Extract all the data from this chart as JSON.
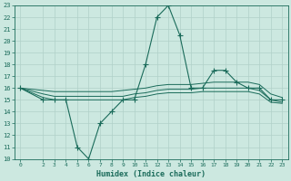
{
  "xlabel": "Humidex (Indice chaleur)",
  "bg_color": "#cce8e0",
  "line_color": "#1a6b5a",
  "grid_color": "#b0d0c8",
  "xlim": [
    -0.5,
    23.5
  ],
  "ylim": [
    10,
    23
  ],
  "xticks": [
    0,
    2,
    3,
    4,
    5,
    6,
    7,
    8,
    9,
    10,
    11,
    12,
    13,
    14,
    15,
    16,
    17,
    18,
    19,
    20,
    21,
    22,
    23
  ],
  "yticks": [
    10,
    11,
    12,
    13,
    14,
    15,
    16,
    17,
    18,
    19,
    20,
    21,
    22,
    23
  ],
  "main_series": {
    "x": [
      0,
      2,
      3,
      4,
      5,
      6,
      7,
      8,
      9,
      10,
      11,
      12,
      13,
      14,
      15,
      16,
      17,
      18,
      19,
      20,
      21,
      22,
      23
    ],
    "y": [
      16,
      15,
      15,
      15,
      11,
      10,
      13,
      14,
      15,
      15,
      18,
      22,
      23,
      20.5,
      16,
      16,
      17.5,
      17.5,
      16.5,
      16,
      16,
      15,
      15
    ]
  },
  "smooth_series": [
    {
      "x": [
        0,
        2,
        3,
        4,
        5,
        6,
        7,
        8,
        9,
        10,
        11,
        12,
        13,
        14,
        15,
        16,
        17,
        18,
        19,
        20,
        21,
        22,
        23
      ],
      "y": [
        16,
        15.8,
        15.7,
        15.7,
        15.7,
        15.7,
        15.7,
        15.7,
        15.8,
        15.9,
        16.0,
        16.2,
        16.3,
        16.3,
        16.3,
        16.4,
        16.5,
        16.5,
        16.5,
        16.5,
        16.3,
        15.5,
        15.2
      ]
    },
    {
      "x": [
        0,
        2,
        3,
        4,
        5,
        6,
        7,
        8,
        9,
        10,
        11,
        12,
        13,
        14,
        15,
        16,
        17,
        18,
        19,
        20,
        21,
        22,
        23
      ],
      "y": [
        16,
        15.5,
        15.3,
        15.3,
        15.3,
        15.3,
        15.3,
        15.3,
        15.3,
        15.5,
        15.6,
        15.8,
        15.9,
        15.9,
        15.9,
        16.0,
        16.0,
        16.0,
        16.0,
        16.0,
        15.8,
        15.0,
        14.8
      ]
    },
    {
      "x": [
        0,
        2,
        3,
        4,
        5,
        6,
        7,
        8,
        9,
        10,
        11,
        12,
        13,
        14,
        15,
        16,
        17,
        18,
        19,
        20,
        21,
        22,
        23
      ],
      "y": [
        16,
        15.2,
        15.0,
        15.0,
        15.0,
        15.0,
        15.0,
        15.0,
        15.0,
        15.2,
        15.3,
        15.5,
        15.6,
        15.6,
        15.6,
        15.7,
        15.7,
        15.7,
        15.7,
        15.7,
        15.5,
        14.8,
        14.7
      ]
    }
  ]
}
